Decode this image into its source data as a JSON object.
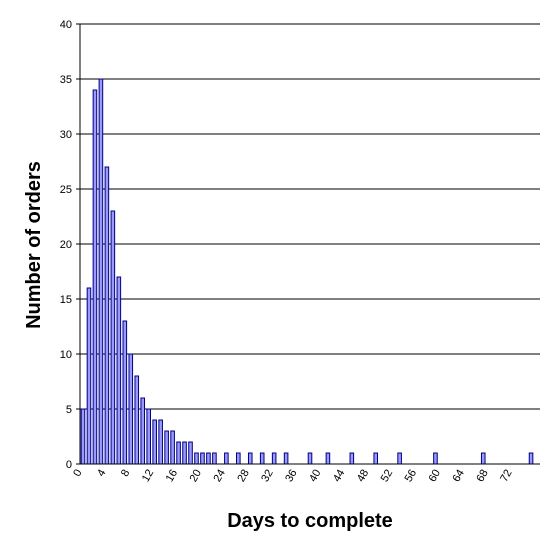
{
  "chart_data": {
    "type": "bar",
    "x_label": "Days to complete",
    "y_label": "Number of orders",
    "categories": [
      "0",
      null,
      null,
      null,
      "4",
      null,
      null,
      null,
      "8",
      null,
      null,
      null,
      "12",
      null,
      null,
      null,
      "16",
      null,
      null,
      null,
      "20",
      null,
      null,
      null,
      "24",
      null,
      null,
      null,
      "28",
      null,
      null,
      null,
      "32",
      null,
      null,
      null,
      "36",
      null,
      null,
      null,
      "40",
      null,
      null,
      null,
      "44",
      null,
      null,
      null,
      "48",
      null,
      null,
      null,
      "52",
      null,
      null,
      null,
      "56",
      null,
      null,
      null,
      "60",
      null,
      null,
      null,
      "64",
      null,
      null,
      null,
      "68",
      null,
      null,
      null,
      "72",
      null,
      null,
      null,
      null
    ],
    "values": [
      5,
      16,
      34,
      35,
      27,
      23,
      17,
      13,
      10,
      8,
      6,
      5,
      4,
      4,
      3,
      3,
      2,
      2,
      2,
      1,
      1,
      1,
      1,
      0,
      1,
      0,
      1,
      0,
      1,
      0,
      1,
      0,
      1,
      0,
      1,
      0,
      0,
      0,
      1,
      0,
      0,
      1,
      0,
      0,
      0,
      1,
      0,
      0,
      0,
      1,
      0,
      0,
      0,
      1,
      0,
      0,
      0,
      0,
      0,
      1,
      0,
      0,
      0,
      0,
      0,
      0,
      0,
      1,
      0,
      0,
      0,
      0,
      0,
      0,
      0,
      1,
      0
    ],
    "color": "#9999ff",
    "ylim": [
      0,
      40
    ],
    "yticks": [
      0,
      5,
      10,
      15,
      20,
      25,
      30,
      35,
      40
    ],
    "grid": true
  }
}
